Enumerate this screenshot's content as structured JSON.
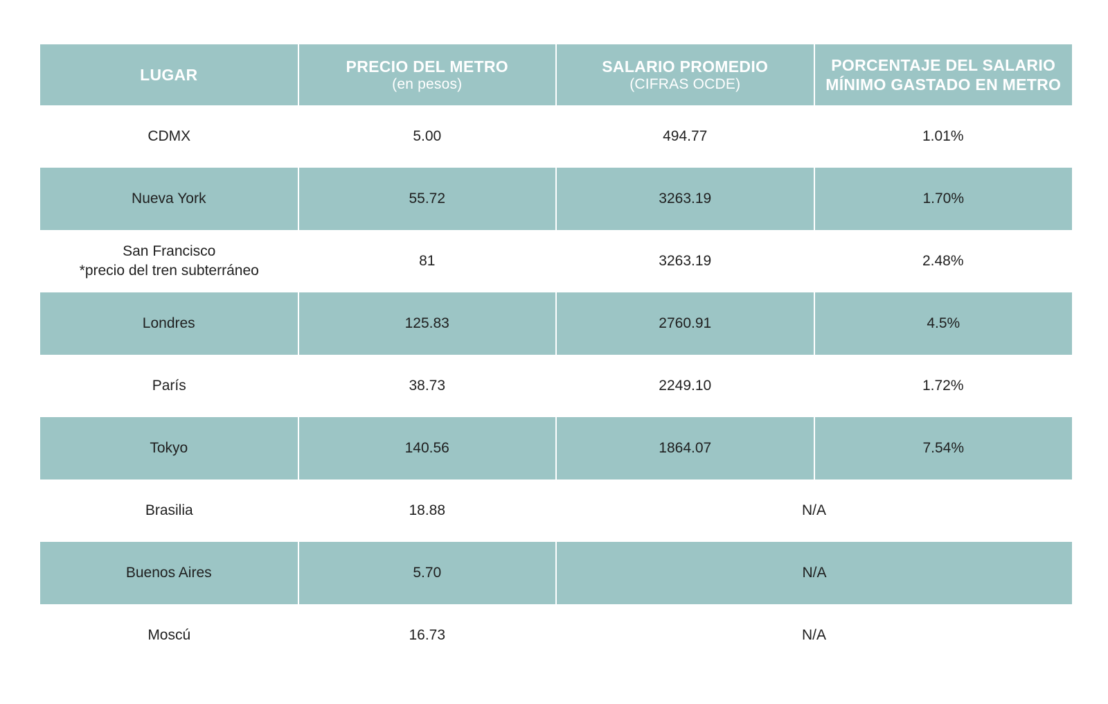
{
  "chart_data": {
    "type": "table",
    "columns": [
      {
        "title": "LUGAR",
        "subtitle": ""
      },
      {
        "title": "PRECIO DEL METRO",
        "subtitle": "(en pesos)"
      },
      {
        "title": "SALARIO PROMEDIO",
        "subtitle": "(CIFRAS OCDE)"
      },
      {
        "title_line1": "PORCENTAJE DEL SALARIO",
        "title_line2": "MÍNIMO GASTADO EN METRO"
      }
    ],
    "rows": [
      {
        "lugar": "CDMX",
        "precio": "5.00",
        "salario": "494.77",
        "porcentaje": "1.01%"
      },
      {
        "lugar": "Nueva York",
        "precio": "55.72",
        "salario": "3263.19",
        "porcentaje": "1.70%"
      },
      {
        "lugar": "San Francisco",
        "lugar_note": "*precio del tren subterráneo",
        "precio": "81",
        "salario": "3263.19",
        "porcentaje": "2.48%"
      },
      {
        "lugar": "Londres",
        "precio": "125.83",
        "salario": "2760.91",
        "porcentaje": "4.5%"
      },
      {
        "lugar": "París",
        "precio": "38.73",
        "salario": "2249.10",
        "porcentaje": "1.72%"
      },
      {
        "lugar": "Tokyo",
        "precio": "140.56",
        "salario": "1864.07",
        "porcentaje": "7.54%"
      },
      {
        "lugar": "Brasilia",
        "precio": "18.88",
        "na": "N/A"
      },
      {
        "lugar": "Buenos Aires",
        "precio": "5.70",
        "na": "N/A"
      },
      {
        "lugar": "Moscú",
        "precio": "16.73",
        "na": "N/A"
      }
    ],
    "colors": {
      "header_and_band": "#9cc5c5",
      "header_text": "#ffffff",
      "cell_text": "#1e1e1e",
      "background": "#ffffff"
    }
  }
}
